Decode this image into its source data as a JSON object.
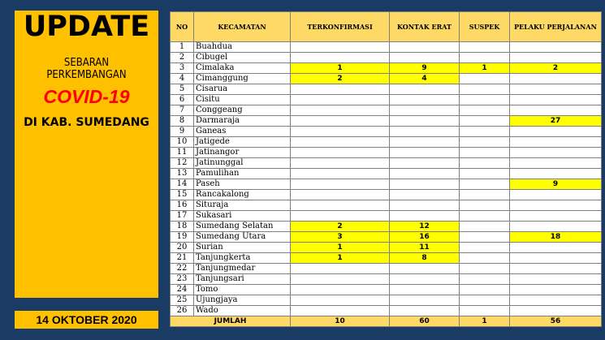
{
  "panel": {
    "title": "UPDATE",
    "subtitle_line1": "SEBARAN",
    "subtitle_line2": "PERKEMBANGAN",
    "highlight": "COVID-19",
    "location": "DI KAB. SUMEDANG",
    "date": "14 OKTOBER 2020"
  },
  "colors": {
    "background": "#1a3b63",
    "panel": "#ffc000",
    "header": "#ffd966",
    "highlight": "#ffff00",
    "covid_text": "#ff0000"
  },
  "table": {
    "headers": [
      "NO",
      "KECAMATAN",
      "TERKONFIRMASI",
      "KONTAK ERAT",
      "SUSPEK",
      "PELAKU PERJALANAN"
    ],
    "rows": [
      {
        "no": "1",
        "name": "Buahdua",
        "terkonfirmasi": "",
        "kontak_erat": "",
        "suspek": "",
        "pelaku_perjalanan": ""
      },
      {
        "no": "2",
        "name": "Cibugel",
        "terkonfirmasi": "",
        "kontak_erat": "",
        "suspek": "",
        "pelaku_perjalanan": ""
      },
      {
        "no": "3",
        "name": "Cimalaka",
        "terkonfirmasi": "1",
        "kontak_erat": "9",
        "suspek": "1",
        "pelaku_perjalanan": "2"
      },
      {
        "no": "4",
        "name": "Cimanggung",
        "terkonfirmasi": "2",
        "kontak_erat": "4",
        "suspek": "",
        "pelaku_perjalanan": ""
      },
      {
        "no": "5",
        "name": "Cisarua",
        "terkonfirmasi": "",
        "kontak_erat": "",
        "suspek": "",
        "pelaku_perjalanan": ""
      },
      {
        "no": "6",
        "name": "Cisitu",
        "terkonfirmasi": "",
        "kontak_erat": "",
        "suspek": "",
        "pelaku_perjalanan": ""
      },
      {
        "no": "7",
        "name": "Conggeang",
        "terkonfirmasi": "",
        "kontak_erat": "",
        "suspek": "",
        "pelaku_perjalanan": ""
      },
      {
        "no": "8",
        "name": "Darmaraja",
        "terkonfirmasi": "",
        "kontak_erat": "",
        "suspek": "",
        "pelaku_perjalanan": "27"
      },
      {
        "no": "9",
        "name": "Ganeas",
        "terkonfirmasi": "",
        "kontak_erat": "",
        "suspek": "",
        "pelaku_perjalanan": ""
      },
      {
        "no": "10",
        "name": "Jatigede",
        "terkonfirmasi": "",
        "kontak_erat": "",
        "suspek": "",
        "pelaku_perjalanan": ""
      },
      {
        "no": "11",
        "name": "Jatinangor",
        "terkonfirmasi": "",
        "kontak_erat": "",
        "suspek": "",
        "pelaku_perjalanan": ""
      },
      {
        "no": "12",
        "name": "Jatinunggal",
        "terkonfirmasi": "",
        "kontak_erat": "",
        "suspek": "",
        "pelaku_perjalanan": ""
      },
      {
        "no": "13",
        "name": "Pamulihan",
        "terkonfirmasi": "",
        "kontak_erat": "",
        "suspek": "",
        "pelaku_perjalanan": ""
      },
      {
        "no": "14",
        "name": "Paseh",
        "terkonfirmasi": "",
        "kontak_erat": "",
        "suspek": "",
        "pelaku_perjalanan": "9"
      },
      {
        "no": "15",
        "name": "Rancakalong",
        "terkonfirmasi": "",
        "kontak_erat": "",
        "suspek": "",
        "pelaku_perjalanan": ""
      },
      {
        "no": "16",
        "name": "Situraja",
        "terkonfirmasi": "",
        "kontak_erat": "",
        "suspek": "",
        "pelaku_perjalanan": ""
      },
      {
        "no": "17",
        "name": "Sukasari",
        "terkonfirmasi": "",
        "kontak_erat": "",
        "suspek": "",
        "pelaku_perjalanan": ""
      },
      {
        "no": "18",
        "name": "Sumedang Selatan",
        "terkonfirmasi": "2",
        "kontak_erat": "12",
        "suspek": "",
        "pelaku_perjalanan": ""
      },
      {
        "no": "19",
        "name": "Sumedang Utara",
        "terkonfirmasi": "3",
        "kontak_erat": "16",
        "suspek": "",
        "pelaku_perjalanan": "18"
      },
      {
        "no": "20",
        "name": "Surian",
        "terkonfirmasi": "1",
        "kontak_erat": "11",
        "suspek": "",
        "pelaku_perjalanan": ""
      },
      {
        "no": "21",
        "name": "Tanjungkerta",
        "terkonfirmasi": "1",
        "kontak_erat": "8",
        "suspek": "",
        "pelaku_perjalanan": ""
      },
      {
        "no": "22",
        "name": "Tanjungmedar",
        "terkonfirmasi": "",
        "kontak_erat": "",
        "suspek": "",
        "pelaku_perjalanan": ""
      },
      {
        "no": "23",
        "name": "Tanjungsari",
        "terkonfirmasi": "",
        "kontak_erat": "",
        "suspek": "",
        "pelaku_perjalanan": ""
      },
      {
        "no": "24",
        "name": "Tomo",
        "terkonfirmasi": "",
        "kontak_erat": "",
        "suspek": "",
        "pelaku_perjalanan": ""
      },
      {
        "no": "25",
        "name": "Ujungjaya",
        "terkonfirmasi": "",
        "kontak_erat": "",
        "suspek": "",
        "pelaku_perjalanan": ""
      },
      {
        "no": "26",
        "name": "Wado",
        "terkonfirmasi": "",
        "kontak_erat": "",
        "suspek": "",
        "pelaku_perjalanan": ""
      }
    ],
    "highlighted_cells": {
      "3": [
        "terkonfirmasi",
        "kontak_erat",
        "suspek",
        "pelaku_perjalanan"
      ],
      "4": [
        "terkonfirmasi",
        "kontak_erat"
      ],
      "8": [
        "pelaku_perjalanan"
      ],
      "14": [
        "pelaku_perjalanan"
      ],
      "18": [
        "terkonfirmasi",
        "kontak_erat"
      ],
      "19": [
        "terkonfirmasi",
        "kontak_erat",
        "pelaku_perjalanan"
      ],
      "20": [
        "terkonfirmasi",
        "kontak_erat"
      ],
      "21": [
        "terkonfirmasi",
        "kontak_erat"
      ]
    },
    "total": {
      "label": "JUMLAH",
      "terkonfirmasi": "10",
      "kontak_erat": "60",
      "suspek": "1",
      "pelaku_perjalanan": "56"
    }
  }
}
